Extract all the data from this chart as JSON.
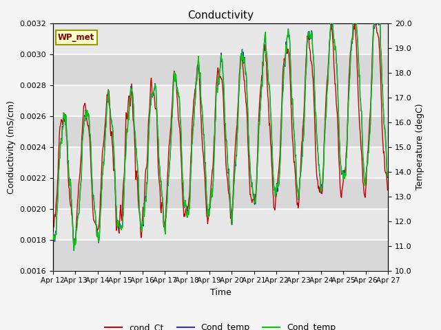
{
  "title": "Conductivity",
  "xlabel": "Time",
  "ylabel_left": "Conductivity (mS/cm)",
  "ylabel_right": "Temperature (degC)",
  "ylim_left": [
    0.0016,
    0.0032
  ],
  "ylim_right": [
    10.0,
    20.0
  ],
  "yticks_left": [
    0.0016,
    0.0018,
    0.002,
    0.0022,
    0.0024,
    0.0026,
    0.0028,
    0.003,
    0.0032
  ],
  "yticks_right": [
    10.0,
    11.0,
    12.0,
    13.0,
    14.0,
    15.0,
    16.0,
    17.0,
    18.0,
    19.0,
    20.0
  ],
  "xtick_labels": [
    "Apr 12",
    "Apr 13",
    "Apr 14",
    "Apr 15",
    "Apr 16",
    "Apr 17",
    "Apr 18",
    "Apr 19",
    "Apr 20",
    "Apr 21",
    "Apr 22",
    "Apr 23",
    "Apr 24",
    "Apr 25",
    "Apr 26",
    "Apr 27"
  ],
  "plot_bg_light": "#e8e8e8",
  "plot_bg_dark": "#d8d8d8",
  "grid_color": "#ffffff",
  "fig_bg_color": "#f5f5f5",
  "legend_entries": [
    "cond_Ct",
    "Cond_temp",
    "Cond_temp"
  ],
  "legend_colors": [
    "#cc0000",
    "#3333cc",
    "#00cc00"
  ],
  "wp_met_box_color": "#ffffcc",
  "wp_met_border_color": "#999900",
  "wp_met_text_color": "#880000",
  "line_width": 1.0,
  "figsize": [
    6.4,
    4.8
  ],
  "dpi": 100
}
